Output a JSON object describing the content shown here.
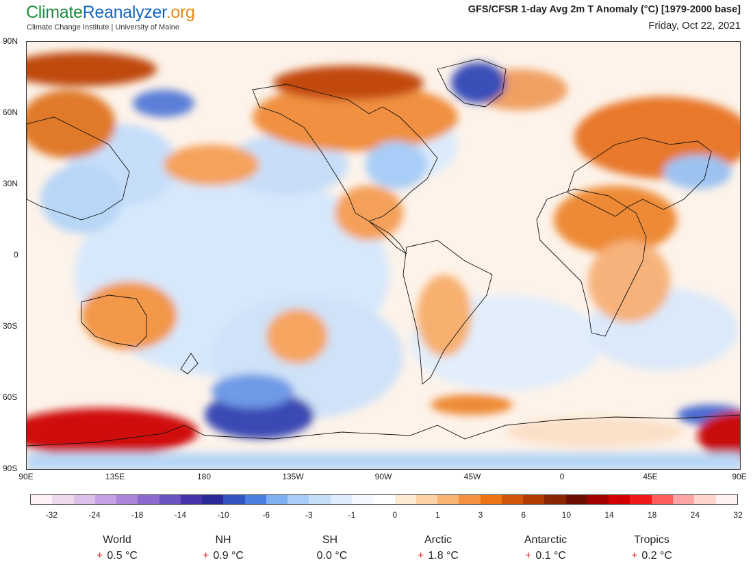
{
  "header": {
    "brand_part1": "Climate",
    "brand_part2": "Reanalyzer",
    "brand_part3": ".org",
    "institution": "Climate Change Institute | University of Maine",
    "title": "GFS/CFSR 1-day Avg 2m T Anomaly (°C) [1979-2000 base]",
    "date": "Friday, Oct 22, 2021"
  },
  "map": {
    "lat_labels": [
      "90N",
      "60N",
      "30N",
      "0",
      "30S",
      "60S",
      "90S"
    ],
    "lon_labels": [
      "90E",
      "135E",
      "180",
      "135W",
      "90W",
      "45W",
      "0",
      "45E",
      "90E"
    ]
  },
  "colorbar": {
    "colors": [
      "#fff0f5",
      "#eed8ee",
      "#dcc0ea",
      "#c6a2e4",
      "#ab84dc",
      "#8b6ad0",
      "#6a52c2",
      "#4433aa",
      "#2a2a9a",
      "#3355c2",
      "#4a7ee0",
      "#7fb0f2",
      "#a8cdf6",
      "#c6defa",
      "#dfecfc",
      "#f4f8fe",
      "#ffffff",
      "#fdebd6",
      "#fcd2a6",
      "#f9b474",
      "#f5913e",
      "#ec7414",
      "#d35508",
      "#b03c04",
      "#8a2402",
      "#6e0e00",
      "#a40000",
      "#d20000",
      "#f01818",
      "#ff5c5c",
      "#ffa4a4",
      "#ffd4cc",
      "#fff2f0"
    ],
    "labels": [
      "-32",
      "-24",
      "-18",
      "-14",
      "-10",
      "-6",
      "-3",
      "-1",
      "0",
      "1",
      "3",
      "6",
      "10",
      "14",
      "18",
      "24",
      "32"
    ]
  },
  "stats": [
    {
      "name": "World",
      "sign": "+",
      "value": "0.5 °C"
    },
    {
      "name": "NH",
      "sign": "+",
      "value": "0.9 °C"
    },
    {
      "name": "SH",
      "sign": "",
      "value": "0.0 °C"
    },
    {
      "name": "Arctic",
      "sign": "+",
      "value": "1.8 °C"
    },
    {
      "name": "Antarctic",
      "sign": "+",
      "value": "0.1 °C"
    },
    {
      "name": "Tropics",
      "sign": "+",
      "value": "0.2 °C"
    }
  ]
}
